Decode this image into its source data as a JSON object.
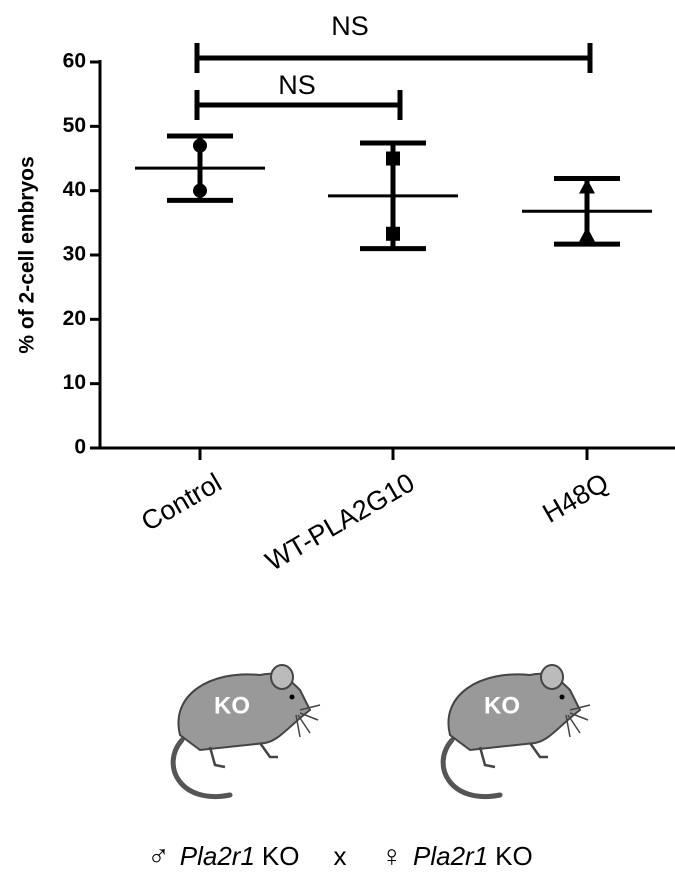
{
  "chart_data": {
    "type": "dotplot",
    "y_label": "% of 2-cell embryos",
    "categories": [
      "Control",
      "WT-PLA2G10",
      "H48Q"
    ],
    "points": [
      [
        47,
        40
      ],
      [
        45,
        33.3
      ],
      [
        40.5,
        33
      ]
    ],
    "markers": [
      "circle",
      "square",
      "triangle"
    ],
    "means": [
      43.5,
      39.2,
      36.8
    ],
    "errors": [
      5,
      8.2,
      5.1
    ],
    "color": "#000000",
    "ylim": [
      0,
      60
    ],
    "yticks": [
      0,
      10,
      20,
      30,
      40,
      50,
      60
    ],
    "annotations": [
      "NS",
      "NS"
    ]
  },
  "illustration": {
    "mice": [
      "KO",
      "KO"
    ],
    "cross": {
      "male_symbol": "♂",
      "male_gene": "Pla2r1",
      "male_suffix": "KO",
      "operator": "x",
      "female_symbol": "♀",
      "female_gene": "Pla2r1",
      "female_suffix": "KO"
    }
  }
}
